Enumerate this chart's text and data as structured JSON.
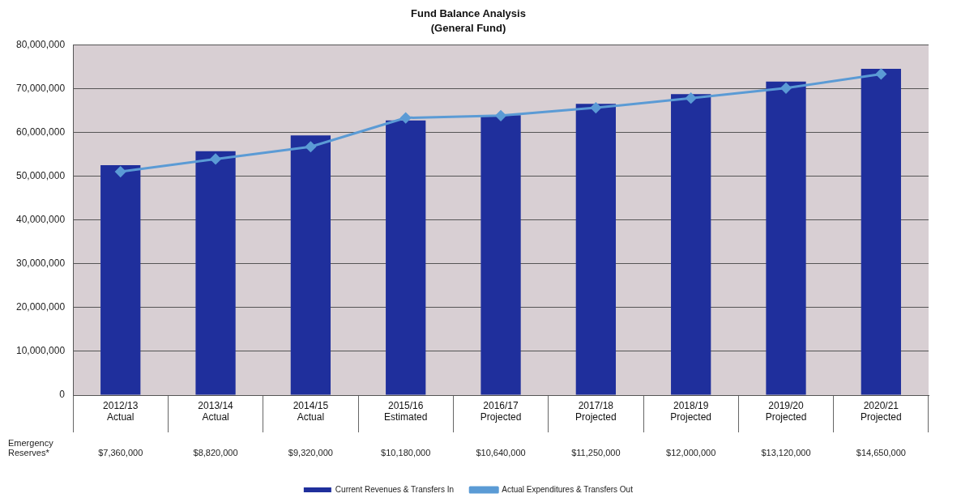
{
  "chart_data": {
    "type": "bar",
    "title": "Fund Balance Analysis",
    "subtitle": "(General Fund)",
    "categories": [
      "2012/13\nActual",
      "2013/14\nActual",
      "2014/15\nActual",
      "2015/16\nEstimated",
      "2016/17\nProjected",
      "2017/18\nProjected",
      "2018/19\nProjected",
      "2019/20\nProjected",
      "2020/21\nProjected"
    ],
    "series": [
      {
        "name": "Current Revenues & Transfers In",
        "color": "#1f2f9c",
        "values": [
          52500000,
          55700000,
          59300000,
          62700000,
          63900000,
          66500000,
          68700000,
          71600000,
          74500000
        ]
      },
      {
        "name": "Actual Expenditures & Transfers Out",
        "type": "line",
        "color": "#5b9bd5",
        "marker": "diamond",
        "values": [
          51000000,
          53900000,
          56700000,
          63300000,
          63800000,
          65600000,
          67800000,
          70100000,
          73300000
        ]
      }
    ],
    "ylim": [
      0,
      80000000
    ],
    "yticks": [
      {
        "value": 0,
        "label": "0"
      },
      {
        "value": 10000000,
        "label": "10,000,000"
      },
      {
        "value": 20000000,
        "label": "20,000,000"
      },
      {
        "value": 30000000,
        "label": "30,000,000"
      },
      {
        "value": 40000000,
        "label": "40,000,000"
      },
      {
        "value": 50000000,
        "label": "50,000,000"
      },
      {
        "value": 60000000,
        "label": "60,000,000"
      },
      {
        "value": 70000000,
        "label": "70,000,000"
      },
      {
        "value": 80000000,
        "label": "80,000,000"
      }
    ],
    "grid": "y",
    "legend": "bottom",
    "annotations": [
      "Emergency Reserves*",
      "$7,360,000",
      "$8,820,000",
      "$9,320,000",
      "$10,180,000",
      "$10,640,000",
      "$11,250,000",
      "$12,000,000",
      "$13,120,000",
      "$14,650,000"
    ]
  }
}
